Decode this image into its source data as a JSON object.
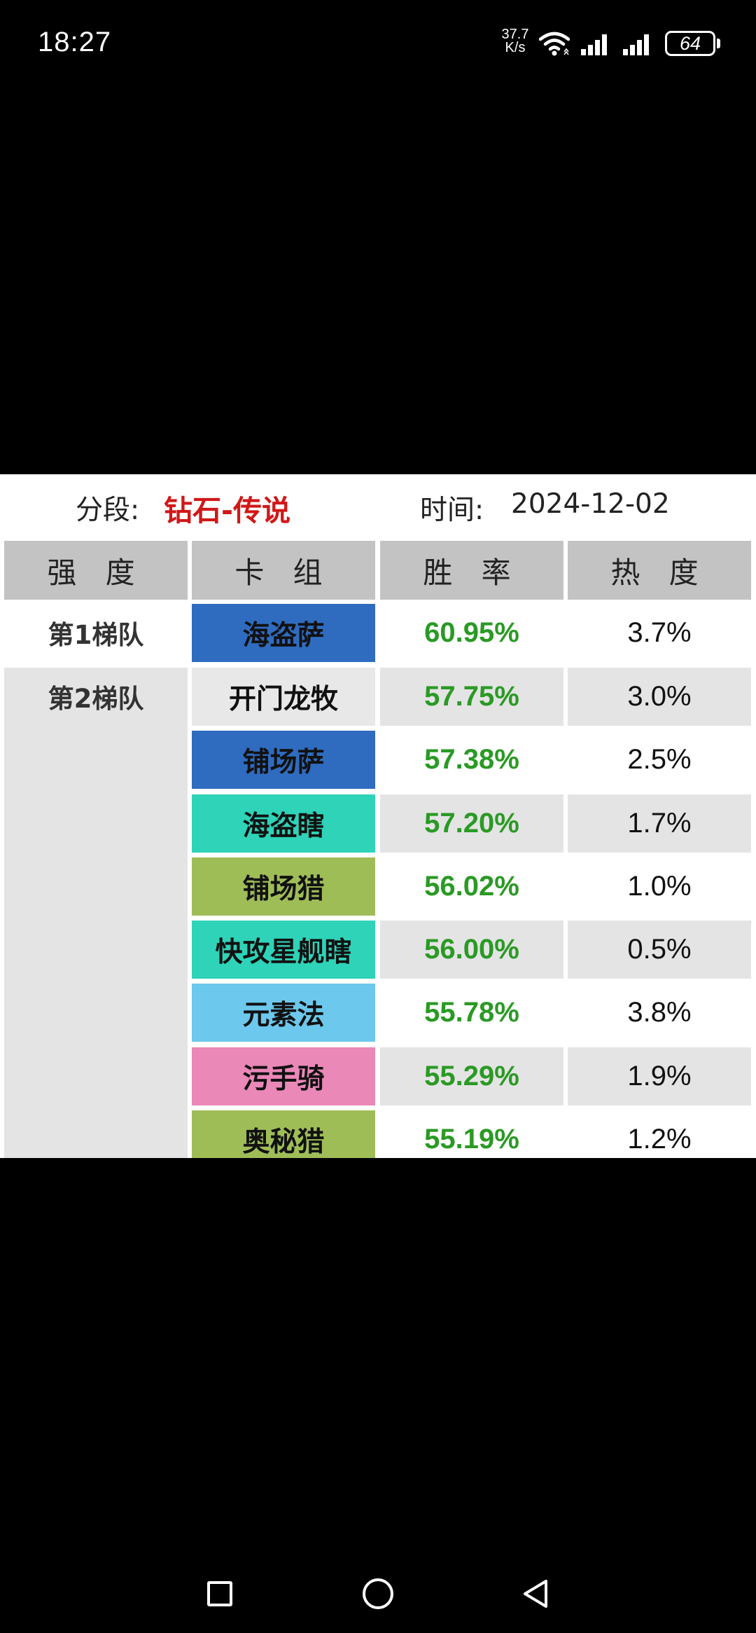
{
  "status_bar": {
    "time": "18:27",
    "net_speed_value": "37.7",
    "net_speed_unit": "K/s",
    "battery": "64",
    "icons": [
      "wifi-icon",
      "signal-icon",
      "signal-icon",
      "battery-icon"
    ]
  },
  "header": {
    "rank_label": "分段:",
    "rank_value": "钻石-传说",
    "date_label": "时间:",
    "date_value": "2024-12-02"
  },
  "table": {
    "columns": [
      "强 度",
      "卡 组",
      "胜 率",
      "热 度"
    ],
    "tiers": [
      {
        "label": "第1梯队"
      },
      {
        "label": "第2梯队"
      }
    ],
    "rows": [
      {
        "deck": "海盗萨",
        "win_rate": "60.95%",
        "heat": "3.7%",
        "deck_color": "#2f6cc0"
      },
      {
        "deck": "开门龙牧",
        "win_rate": "57.75%",
        "heat": "3.0%",
        "deck_color": "#e8e8e8"
      },
      {
        "deck": "铺场萨",
        "win_rate": "57.38%",
        "heat": "2.5%",
        "deck_color": "#2f6cc0"
      },
      {
        "deck": "海盗瞎",
        "win_rate": "57.20%",
        "heat": "1.7%",
        "deck_color": "#2ed3b8"
      },
      {
        "deck": "铺场猎",
        "win_rate": "56.02%",
        "heat": "1.0%",
        "deck_color": "#9fbd57"
      },
      {
        "deck": "快攻星舰瞎",
        "win_rate": "56.00%",
        "heat": "0.5%",
        "deck_color": "#2ed3b8"
      },
      {
        "deck": "元素法",
        "win_rate": "55.78%",
        "heat": "3.8%",
        "deck_color": "#6cc8ec"
      },
      {
        "deck": "污手骑",
        "win_rate": "55.29%",
        "heat": "1.9%",
        "deck_color": "#ea88b8"
      },
      {
        "deck": "奥秘猎",
        "win_rate": "55.19%",
        "heat": "1.2%",
        "deck_color": "#9fbd57"
      }
    ]
  },
  "nav": {
    "icons": [
      "recent-apps-icon",
      "home-icon",
      "back-icon"
    ]
  }
}
